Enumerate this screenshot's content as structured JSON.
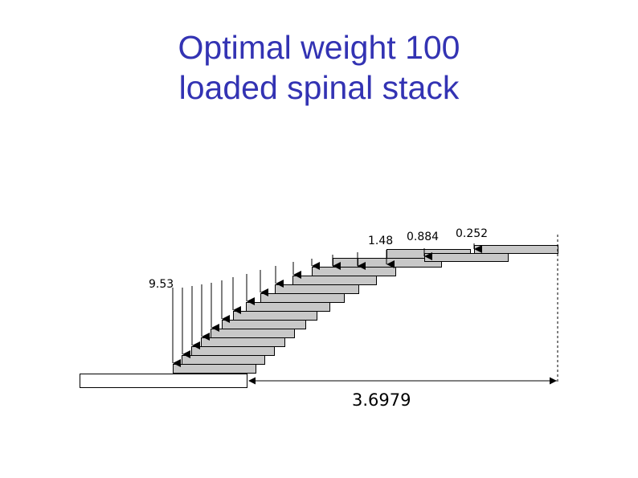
{
  "title": {
    "line1": "Optimal weight 100",
    "line2": "loaded spinal stack"
  },
  "labels": {
    "left_load": "9.53",
    "load_a": "1.48",
    "load_b": "0.884",
    "load_c": "0.252",
    "overhang": "3.6979"
  },
  "colors": {
    "title": "#3333b3",
    "block_fill": "#c8c8c8",
    "outline": "#000000"
  }
}
